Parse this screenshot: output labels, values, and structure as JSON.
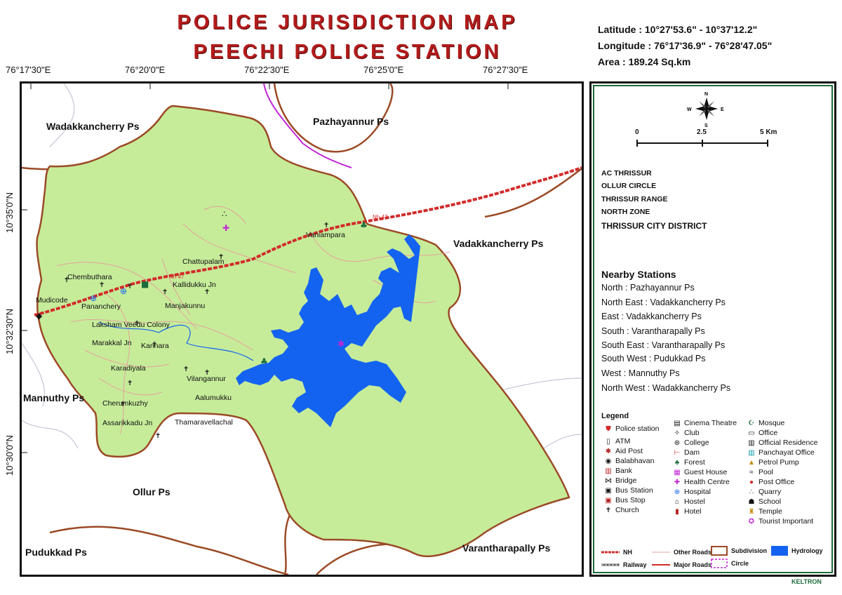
{
  "title": {
    "line1": "POLICE JURISDICTION MAP",
    "line2": "PEECHI POLICE STATION"
  },
  "extent": {
    "latitude": "Latitude : 10°27'53.6\"  -  10°37'12.2\"",
    "longitude": "Longitude : 76°17'36.9\"  -  76°28'47.05\"",
    "area": "Area : 189.24 Sq.km"
  },
  "graticule": {
    "lon_ticks": [
      "76°17'30\"E",
      "76°20'0\"E",
      "76°22'30\"E",
      "76°25'0\"E",
      "76°27'30\"E"
    ],
    "lat_ticks": [
      "10°35'0\"N",
      "10°32'30\"N",
      "10°30'0\"N"
    ]
  },
  "neighbours": {
    "wadakkancherry_nw": "Wadakkancherry Ps",
    "pazhayannur": "Pazhayannur Ps",
    "vadakkancherry_e": "Vadakkancherry Ps",
    "mannuthy": "Mannuthy Ps",
    "ollur": "Ollur Ps",
    "pudukkad": "Pudukkad Ps",
    "varantharapally": "Varantharapally Ps"
  },
  "places": {
    "chembuthara": "Chembuthara",
    "mudicode": "Mudicode",
    "pananchery": "Pananchery",
    "chattuppalam": "Chattupalam",
    "kallidukku": "Kallidukku Jn",
    "manjakunnu": "Manjakunnu",
    "laksham": "Laksham Veedu Colony",
    "marakkal": "Marakkal Jn",
    "kannara": "Kannara",
    "karadiyala": "Karadiyala",
    "vilangannur": "Vilangannur",
    "aalumukku": "Aalumukku",
    "cherumkuzhy": "Cherumkuzhy",
    "assarikkadu": "Assarikkadu Jn",
    "thamaravellachal": "Thamaravellachal",
    "vaniampara": "Vaniampara",
    "nh47": "Nh 47"
  },
  "scale": {
    "labels": [
      "0",
      "2.5",
      "5 Km"
    ]
  },
  "compass": {
    "n": "N",
    "s": "S",
    "e": "E",
    "w": "W"
  },
  "admin": {
    "ac": "AC THRISSUR",
    "circle": "OLLUR CIRCLE",
    "range": "THRISSUR RANGE",
    "zone": "NORTH ZONE",
    "district": "THRISSUR CITY  DISTRICT"
  },
  "nearby": {
    "title": "Nearby Stations",
    "items": [
      "North : Pazhayannur Ps",
      "North East : Vadakkancherry Ps",
      "East : Vadakkancherry Ps",
      "South : Varantharapally Ps",
      "South East : Varantharapally Ps",
      "South West : Pudukkad Ps",
      "West : Mannuthy Ps",
      "North West : Wadakkancherry Ps"
    ]
  },
  "legend": {
    "title": "Legend",
    "col1": [
      "Police station",
      "ATM",
      "Aid Post",
      "Balabhavan",
      "Bank",
      "Bridge",
      "Bus Station",
      "Bus Stop",
      "Church"
    ],
    "col2": [
      "Cinema Theatre",
      "Club",
      "College",
      "Dam",
      "Forest",
      "Guest House",
      "Health Centre",
      "Hospital",
      "Hostel",
      "Hotel"
    ],
    "col3": [
      "Mosque",
      "Office",
      "Official Residence",
      "Panchayat Office",
      "Petrol Pump",
      "Pool",
      "Post Office",
      "Quarry",
      "School",
      "Temple",
      "Tourist Important"
    ],
    "lines": {
      "nh": "NH",
      "railway": "Railway",
      "other_roads": "Other Roads",
      "major_roads": "Major Roads",
      "subdivision": "Subdivision",
      "circle": "Circle",
      "hydrology": "Hydrology"
    }
  },
  "credit": "KELTRON",
  "colors": {
    "title": "#b31b1b",
    "jurisdiction": "#c6ec9a",
    "water": "#1463f0",
    "subdivision": "#9b4a25",
    "circle": "#c026d3",
    "nh": "#d22a2a"
  }
}
